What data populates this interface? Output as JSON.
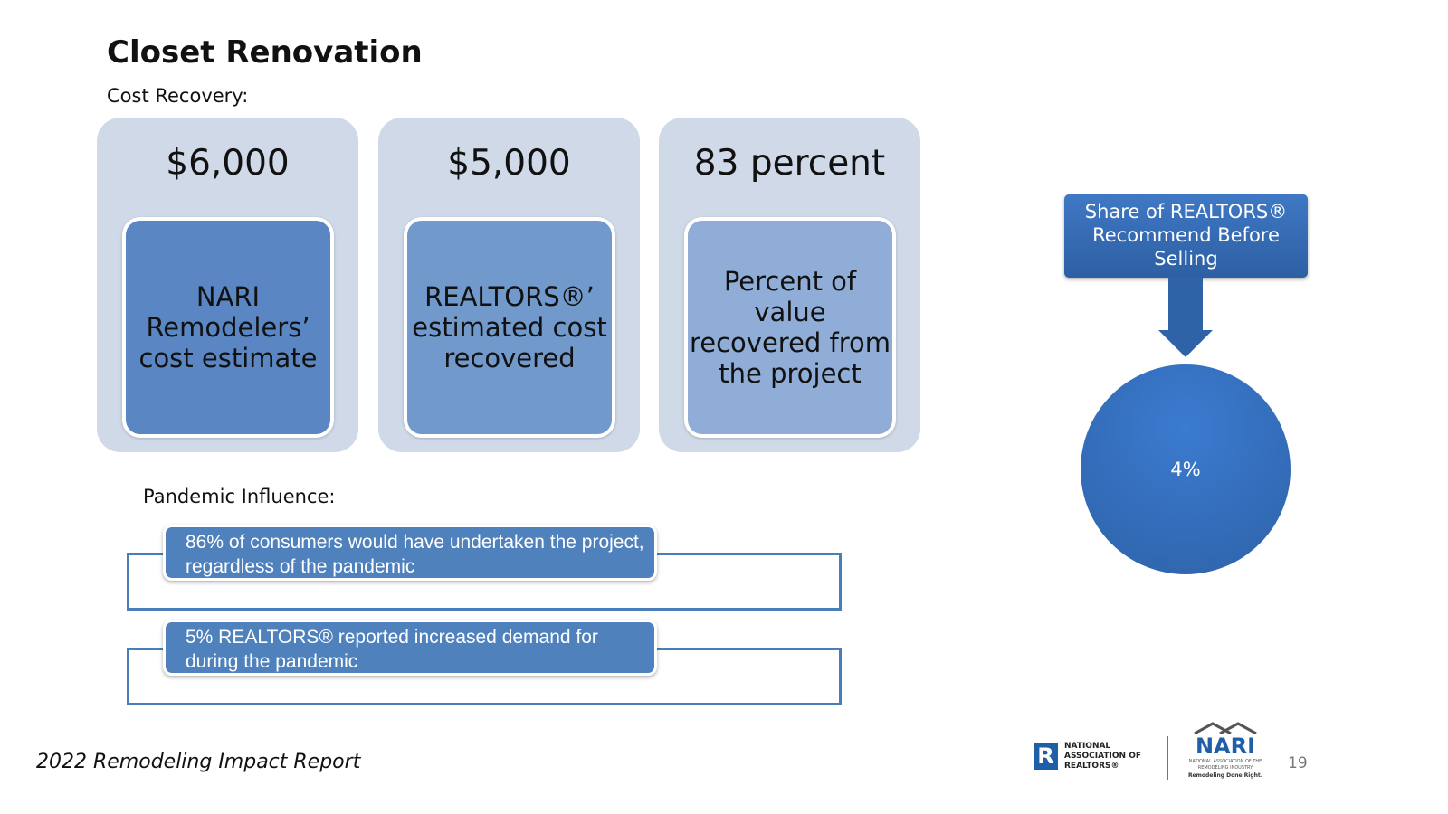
{
  "title": "Closet Renovation",
  "cost_recovery_label": "Cost Recovery:",
  "cards": [
    {
      "value": "$6,000",
      "description": "NARI Remodelers’ cost estimate"
    },
    {
      "value": "$5,000",
      "description": "REALTORS®’ estimated cost recovered"
    },
    {
      "value": "83 percent",
      "description": "Percent of value recovered from the project"
    }
  ],
  "pandemic_label": "Pandemic Influence:",
  "pandemic_items": [
    "86% of consumers would have undertaken the project, regardless of the pandemic",
    "5% REALTORS® reported increased demand for during the pandemic"
  ],
  "recommend": {
    "label": "Share of REALTORS® Recommend Before Selling",
    "value": "4%"
  },
  "footer": "2022 Remodeling Impact Report",
  "page_number": "19",
  "logos": {
    "nar": "NATIONAL ASSOCIATION OF REALTORS®",
    "nari": "NARI",
    "nari_sub": "NATIONAL ASSOCIATION OF THE REMODELING INDUSTRY",
    "nari_tag": "Remodeling Done Right."
  },
  "colors": {
    "card_bg": "#d0d9e8",
    "inner1": "#5a87c3",
    "inner2": "#7199cb",
    "inner3": "#8fadd6",
    "accent": "#4f81bd"
  }
}
